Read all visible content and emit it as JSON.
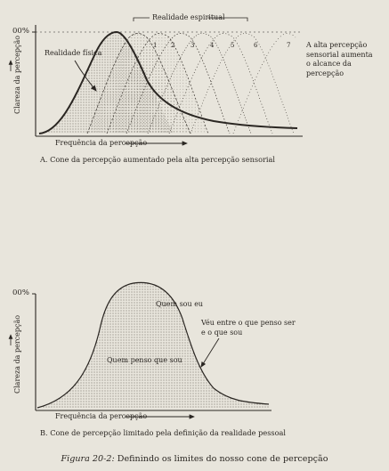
{
  "figure_title": {
    "label": "Figura 20-2:",
    "text": "Definindo os limites do nosso cone de percepção"
  },
  "panel_a": {
    "y_axis_top": "00%",
    "y_axis_label": "Clareza da percepção",
    "x_axis_label": "Frequência da percepção",
    "label_realidade_fisica": "Realidade física",
    "label_realidade_espiritual": "Realidade espiritual",
    "curve_numbers": [
      "1",
      "2",
      "3",
      "4",
      "5",
      "6",
      "7"
    ],
    "note_lines": [
      "A alta percepção",
      "sensorial aumenta",
      "o alcance da",
      "percepção"
    ],
    "caption": "A. Cone da percepção aumentado pela alta percepção sensorial"
  },
  "panel_b": {
    "y_axis_top": "00%",
    "y_axis_label": "Clareza da percepção",
    "x_axis_label": "Frequência da percepção",
    "label_quem_sou_eu": "Quem sou eu",
    "label_quem_penso": "Quem penso que sou",
    "note_lines": [
      "Véu entre o que penso ser",
      "e o que sou"
    ],
    "caption": "B. Cone de percepção limitado pela definição da realidade pessoal"
  },
  "colors": {
    "paper": "#e8e5dc",
    "ink": "#2a2622",
    "stipple": "#5a544c"
  }
}
